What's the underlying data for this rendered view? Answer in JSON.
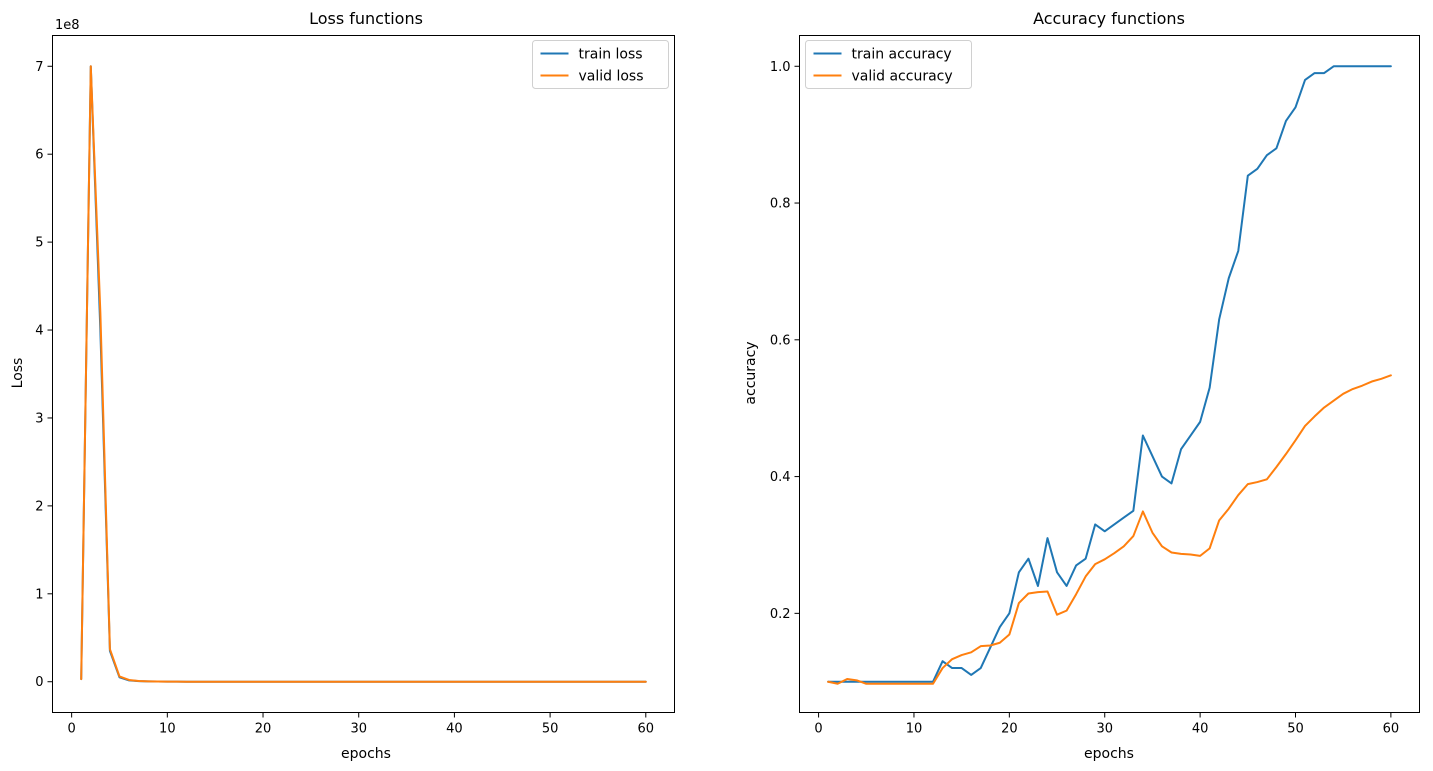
{
  "chart_data": [
    {
      "type": "line",
      "title": "Loss functions",
      "xlabel": "epochs",
      "ylabel": "Loss",
      "y_offset_label": "1e8",
      "y_scale_factor": 100000000,
      "xlim": [
        -2,
        63
      ],
      "ylim": [
        -35000000,
        735000000
      ],
      "xticks": [
        0,
        10,
        20,
        30,
        40,
        50,
        60
      ],
      "yticks": [
        0,
        100000000,
        200000000,
        300000000,
        400000000,
        500000000,
        600000000,
        700000000
      ],
      "ytick_labels": [
        "0",
        "1",
        "2",
        "3",
        "4",
        "5",
        "6",
        "7"
      ],
      "legend_position": "upper right",
      "grid": false,
      "series": [
        {
          "name": "train loss",
          "color": "#1f77b4",
          "x": [
            1,
            2,
            3,
            4,
            5,
            6,
            7,
            8,
            9,
            10,
            11,
            12,
            13,
            14,
            15,
            16,
            17,
            18,
            19,
            20,
            21,
            22,
            23,
            24,
            25,
            26,
            27,
            28,
            29,
            30,
            31,
            32,
            33,
            34,
            35,
            36,
            37,
            38,
            39,
            40,
            41,
            42,
            43,
            44,
            45,
            46,
            47,
            48,
            49,
            50,
            51,
            52,
            53,
            54,
            55,
            56,
            57,
            58,
            59,
            60
          ],
          "y": [
            3000000,
            700000000,
            400000000,
            35000000,
            5000000,
            1500000,
            700000,
            400000,
            200000,
            100000,
            50000,
            30000,
            20000,
            10000,
            5000,
            3000,
            2000,
            1000,
            800,
            600,
            500,
            400,
            300,
            200,
            100,
            50,
            40,
            30,
            20,
            10,
            10,
            10,
            10,
            10,
            10,
            10,
            10,
            10,
            10,
            10,
            10,
            10,
            10,
            10,
            10,
            10,
            10,
            10,
            10,
            10,
            10,
            10,
            10,
            10,
            10,
            10,
            10,
            10,
            10,
            10
          ]
        },
        {
          "name": "valid loss",
          "color": "#ff7f0e",
          "x": [
            1,
            2,
            3,
            4,
            5,
            6,
            7,
            8,
            9,
            10,
            11,
            12,
            13,
            14,
            15,
            16,
            17,
            18,
            19,
            20,
            21,
            22,
            23,
            24,
            25,
            26,
            27,
            28,
            29,
            30,
            31,
            32,
            33,
            34,
            35,
            36,
            37,
            38,
            39,
            40,
            41,
            42,
            43,
            44,
            45,
            46,
            47,
            48,
            49,
            50,
            51,
            52,
            53,
            54,
            55,
            56,
            57,
            58,
            59,
            60
          ],
          "y": [
            3000000,
            700000000,
            420000000,
            37000000,
            6000000,
            2000000,
            800000,
            400000,
            200000,
            100000,
            50000,
            30000,
            20000,
            10000,
            5000,
            3000,
            2000,
            1000,
            800,
            600,
            500,
            400,
            300,
            200,
            100,
            50,
            40,
            30,
            20,
            10,
            10,
            10,
            10,
            10,
            10,
            10,
            10,
            10,
            10,
            10,
            10,
            10,
            10,
            10,
            10,
            10,
            10,
            10,
            10,
            10,
            10,
            10,
            10,
            10,
            10,
            10,
            10,
            10,
            10,
            10
          ]
        }
      ]
    },
    {
      "type": "line",
      "title": "Accuracy functions",
      "xlabel": "epochs",
      "ylabel": "accuracy",
      "xlim": [
        -2,
        63
      ],
      "ylim": [
        0.055,
        1.045
      ],
      "xticks": [
        0,
        10,
        20,
        30,
        40,
        50,
        60
      ],
      "yticks": [
        0.2,
        0.4,
        0.6,
        0.8,
        1.0
      ],
      "ytick_labels": [
        "0.2",
        "0.4",
        "0.6",
        "0.8",
        "1.0"
      ],
      "legend_position": "upper left",
      "grid": false,
      "series": [
        {
          "name": "train accuracy",
          "color": "#1f77b4",
          "x": [
            1,
            2,
            3,
            4,
            5,
            6,
            7,
            8,
            9,
            10,
            11,
            12,
            13,
            14,
            15,
            16,
            17,
            18,
            19,
            20,
            21,
            22,
            23,
            24,
            25,
            26,
            27,
            28,
            29,
            30,
            31,
            32,
            33,
            34,
            35,
            36,
            37,
            38,
            39,
            40,
            41,
            42,
            43,
            44,
            45,
            46,
            47,
            48,
            49,
            50,
            51,
            52,
            53,
            54,
            55,
            56,
            57,
            58,
            59,
            60
          ],
          "y": [
            0.1,
            0.1,
            0.1,
            0.1,
            0.1,
            0.1,
            0.1,
            0.1,
            0.1,
            0.1,
            0.1,
            0.1,
            0.13,
            0.12,
            0.12,
            0.11,
            0.12,
            0.15,
            0.18,
            0.2,
            0.26,
            0.28,
            0.24,
            0.31,
            0.26,
            0.24,
            0.27,
            0.28,
            0.33,
            0.32,
            0.33,
            0.34,
            0.35,
            0.46,
            0.43,
            0.4,
            0.39,
            0.44,
            0.46,
            0.48,
            0.53,
            0.63,
            0.69,
            0.73,
            0.84,
            0.85,
            0.87,
            0.88,
            0.92,
            0.94,
            0.98,
            0.99,
            0.99,
            1.0,
            1.0,
            1.0,
            1.0,
            1.0,
            1.0,
            1.0
          ]
        },
        {
          "name": "valid accuracy",
          "color": "#ff7f0e",
          "x": [
            1,
            2,
            3,
            4,
            5,
            6,
            7,
            8,
            9,
            10,
            11,
            12,
            13,
            14,
            15,
            16,
            17,
            18,
            19,
            20,
            21,
            22,
            23,
            24,
            25,
            26,
            27,
            28,
            29,
            30,
            31,
            32,
            33,
            34,
            35,
            36,
            37,
            38,
            39,
            40,
            41,
            42,
            43,
            44,
            45,
            46,
            47,
            48,
            49,
            50,
            51,
            52,
            53,
            54,
            55,
            56,
            57,
            58,
            59,
            60
          ],
          "y": [
            0.1,
            0.097,
            0.104,
            0.102,
            0.097,
            0.097,
            0.097,
            0.097,
            0.097,
            0.097,
            0.097,
            0.097,
            0.12,
            0.133,
            0.139,
            0.143,
            0.152,
            0.153,
            0.157,
            0.169,
            0.215,
            0.229,
            0.231,
            0.232,
            0.198,
            0.204,
            0.228,
            0.254,
            0.272,
            0.279,
            0.288,
            0.298,
            0.313,
            0.349,
            0.318,
            0.298,
            0.289,
            0.287,
            0.286,
            0.284,
            0.295,
            0.336,
            0.353,
            0.373,
            0.389,
            0.392,
            0.396,
            0.414,
            0.433,
            0.453,
            0.474,
            0.488,
            0.501,
            0.511,
            0.521,
            0.528,
            0.533,
            0.539,
            0.543,
            0.548
          ]
        }
      ]
    }
  ]
}
